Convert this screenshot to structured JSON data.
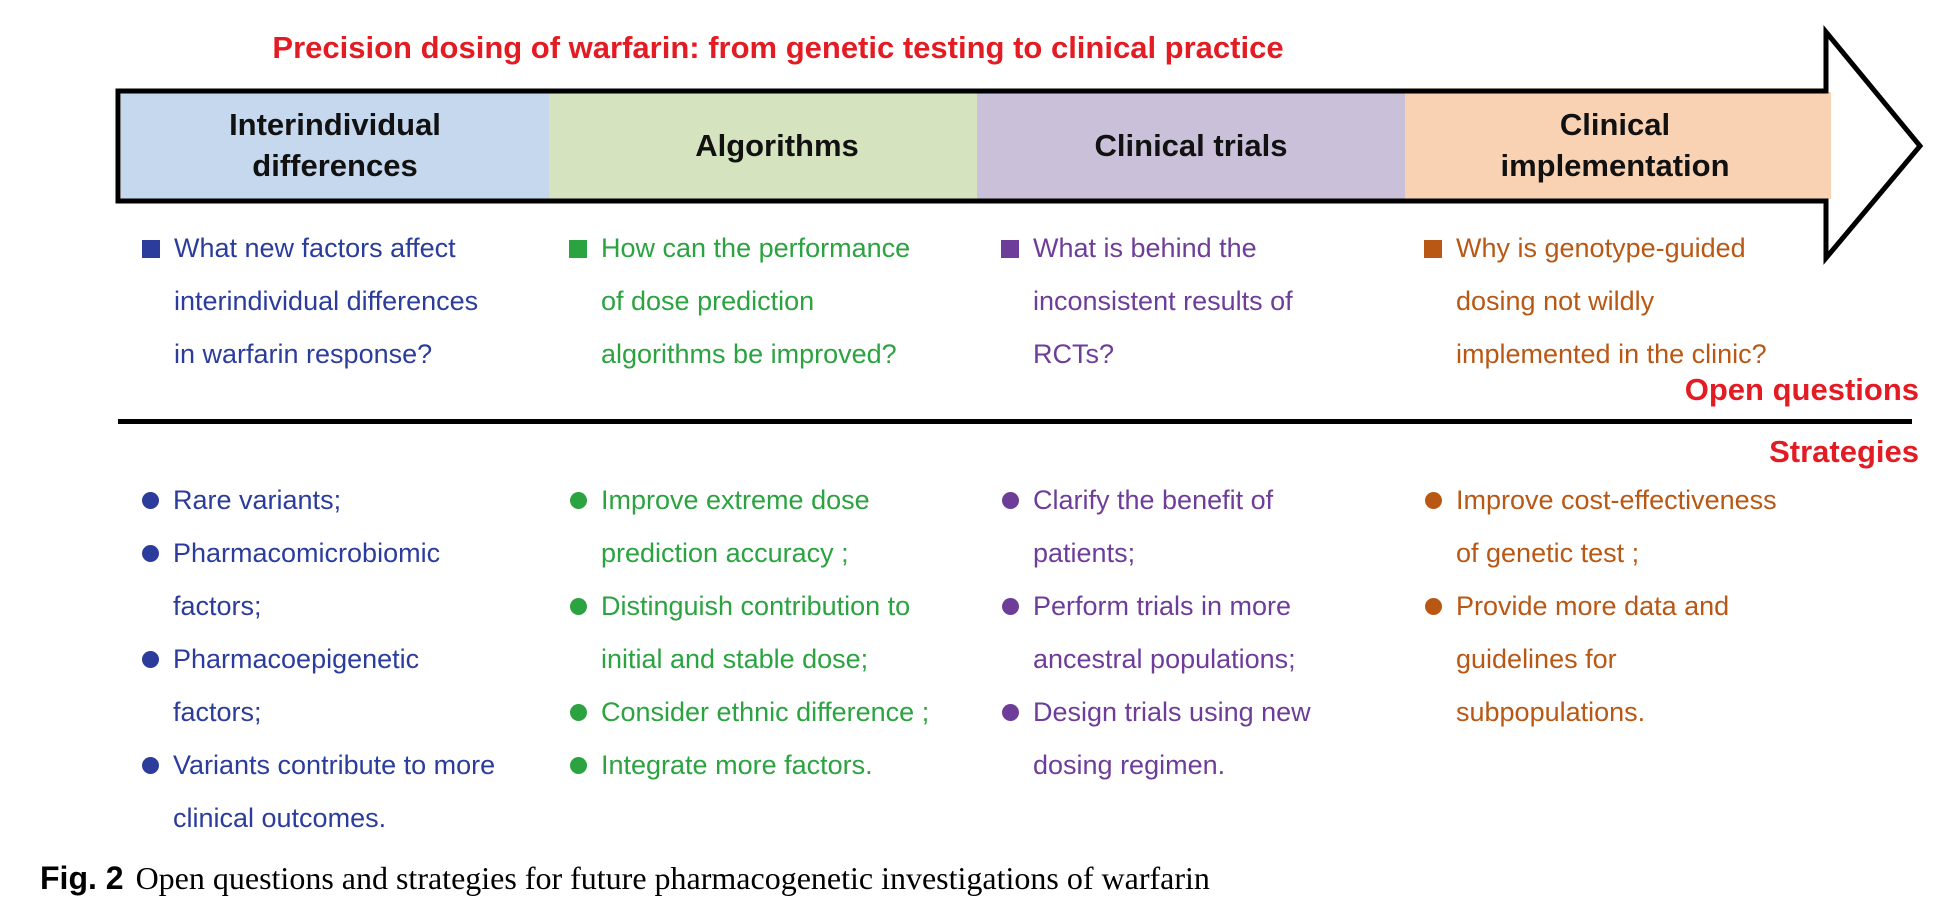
{
  "title": "Precision dosing of warfarin: from genetic testing to clinical practice",
  "stages": [
    {
      "label_line1": "Interindividual",
      "label_line2": "differences",
      "fill": "#c5d8ee",
      "text_color": "#2b3c9c"
    },
    {
      "label_line1": "Algorithms",
      "label_line2": "",
      "fill": "#d5e4be",
      "text_color": "#2ba340"
    },
    {
      "label_line1": "Clinical trials",
      "label_line2": "",
      "fill": "#cbc0da",
      "text_color": "#6e3d9a"
    },
    {
      "label_line1": "Clinical",
      "label_line2": "implementation",
      "fill": "#f8d2b3",
      "text_color": "#b95814"
    }
  ],
  "open_questions": {
    "label": "Open  questions",
    "items": [
      {
        "lines": [
          "What new factors affect",
          "interindividual differences",
          "in warfarin response?"
        ]
      },
      {
        "lines": [
          "How can the performance",
          "of dose prediction",
          "algorithms be improved?"
        ]
      },
      {
        "lines": [
          "What is behind the",
          "inconsistent results of",
          "RCTs?"
        ]
      },
      {
        "lines": [
          "Why is genotype-guided",
          "dosing not wildly",
          "implemented in the clinic?"
        ]
      }
    ]
  },
  "strategies": {
    "label": "Strategies",
    "columns": [
      [
        {
          "lines": [
            "Rare variants;"
          ]
        },
        {
          "lines": [
            "Pharmacomicrobiomic",
            "factors;"
          ]
        },
        {
          "lines": [
            "Pharmacoepigenetic",
            "factors;"
          ]
        },
        {
          "lines": [
            "Variants contribute to more",
            "clinical outcomes."
          ]
        }
      ],
      [
        {
          "lines": [
            "Improve extreme dose",
            "prediction accuracy ;"
          ]
        },
        {
          "lines": [
            "Distinguish contribution to",
            "initial and stable dose;"
          ]
        },
        {
          "lines": [
            "Consider ethnic difference ;"
          ]
        },
        {
          "lines": [
            "Integrate more factors."
          ]
        }
      ],
      [
        {
          "lines": [
            "Clarify the benefit of",
            "patients;"
          ]
        },
        {
          "lines": [
            "Perform trials in more",
            "ancestral populations;"
          ]
        },
        {
          "lines": [
            "Design trials using new",
            "dosing regimen."
          ]
        }
      ],
      [
        {
          "lines": [
            "Improve cost-effectiveness",
            "of genetic test ;"
          ]
        },
        {
          "lines": [
            "Provide more data and",
            "guidelines for",
            "subpopulations."
          ]
        }
      ]
    ]
  },
  "caption": {
    "figure_label": "Fig. 2",
    "text": "Open questions and strategies for future pharmacogenetic investigations of warfarin"
  }
}
